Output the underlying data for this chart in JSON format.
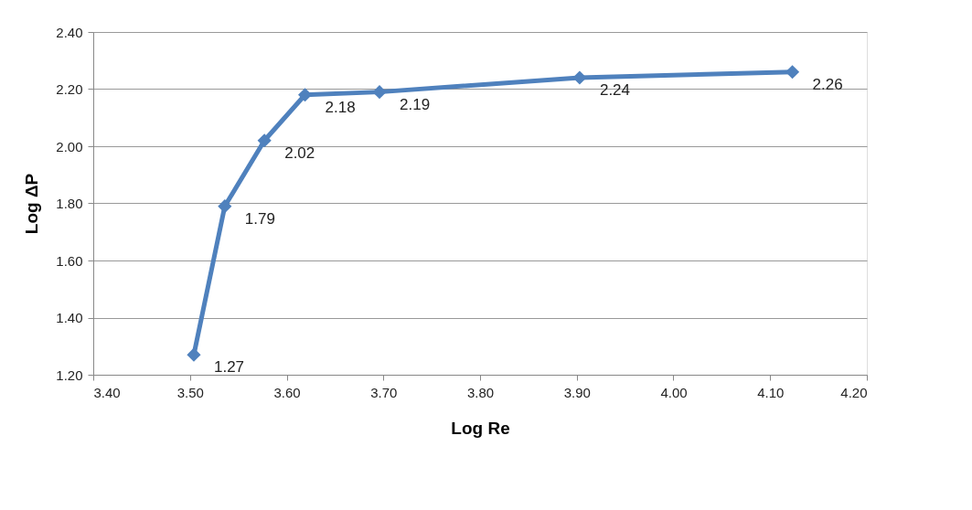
{
  "chart_data": {
    "type": "line",
    "xlabel": "Log Re",
    "ylabel": "Log ΔP",
    "x": [
      3.504,
      3.536,
      3.577,
      3.619,
      3.696,
      3.903,
      4.123
    ],
    "series": [
      {
        "color": "#4f81bd",
        "values": [
          1.27,
          1.79,
          2.02,
          2.18,
          2.19,
          2.24,
          2.26
        ]
      }
    ],
    "xlim": [
      3.4,
      4.2
    ],
    "xticks": [
      {
        "value": 3.4,
        "label": "3.40"
      },
      {
        "value": 3.5,
        "label": "3.50"
      },
      {
        "value": 3.6,
        "label": "3.60"
      },
      {
        "value": 3.7,
        "label": "3.70"
      },
      {
        "value": 3.8,
        "label": "3.80"
      },
      {
        "value": 3.9,
        "label": "3.90"
      },
      {
        "value": 4.0,
        "label": "4.00"
      },
      {
        "value": 4.1,
        "label": "4.10"
      },
      {
        "value": 4.2,
        "label": "4.20"
      }
    ],
    "ylim": [
      1.2,
      2.4
    ],
    "yticks": [
      {
        "value": 1.2,
        "label": "1.20"
      },
      {
        "value": 1.4,
        "label": "1.40"
      },
      {
        "value": 1.6,
        "label": "1.60"
      },
      {
        "value": 1.8,
        "label": "1.80"
      },
      {
        "value": 2.0,
        "label": "2.00"
      },
      {
        "value": 2.2,
        "label": "2.20"
      },
      {
        "value": 2.4,
        "label": "2.40"
      }
    ],
    "grid": "y",
    "marker": "diamond",
    "line_style": "solid",
    "data_labels": true
  }
}
